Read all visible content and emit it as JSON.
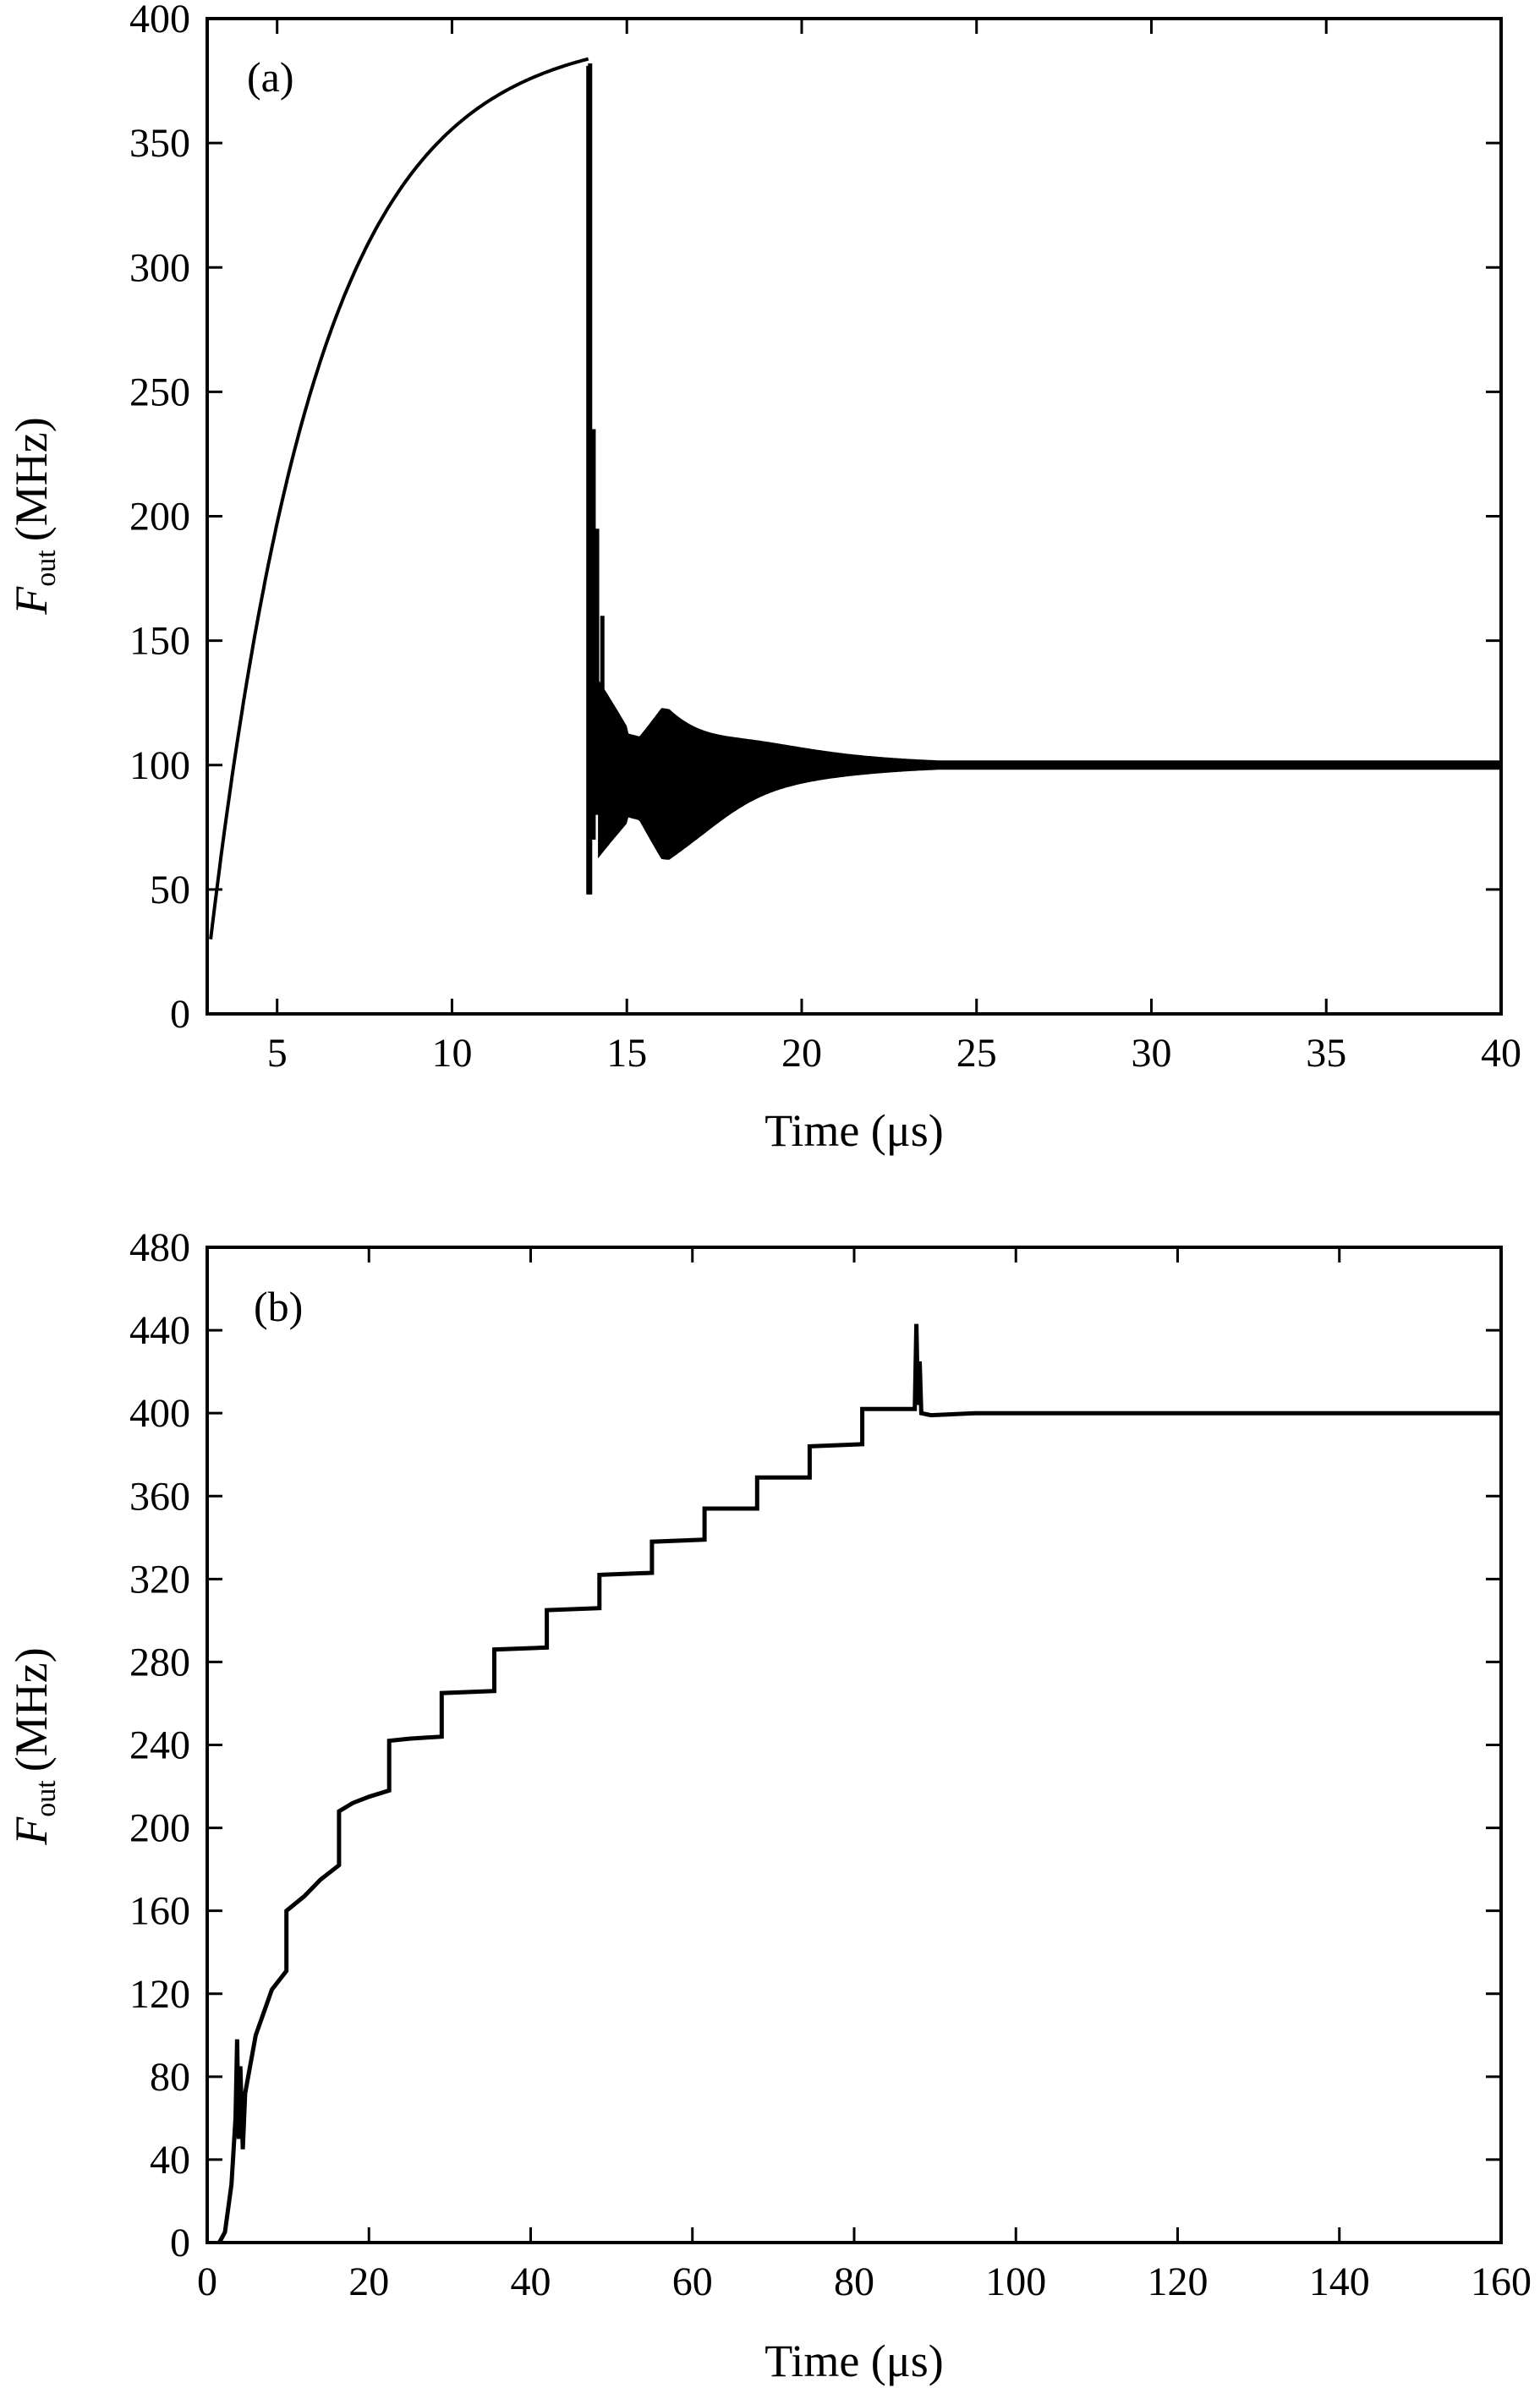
{
  "chart_data": [
    {
      "type": "line",
      "panel_label": "(a)",
      "xlabel": "Time (μs)",
      "ylabel_main": "F",
      "ylabel_sub": "out",
      "ylabel_unit": "(MHz)",
      "xlim": [
        3,
        40
      ],
      "ylim": [
        0,
        400
      ],
      "xticks": [
        5,
        10,
        15,
        20,
        25,
        30,
        35,
        40
      ],
      "yticks": [
        0,
        50,
        100,
        150,
        200,
        250,
        300,
        350,
        400
      ],
      "grid": false,
      "color": "#000000",
      "segments": {
        "rise": {
          "x_start": 3.1,
          "x_end": 13.9,
          "y_start": 30,
          "y_final": 395,
          "tau": 3.1
        },
        "drop": {
          "x": 13.9,
          "y_top": 381,
          "y_bottom": 48
        },
        "spikes": [
          [
            13.95,
            48,
            382
          ],
          [
            14.05,
            70,
            235
          ],
          [
            14.15,
            80,
            195
          ],
          [
            14.3,
            90,
            160
          ]
        ],
        "oscillation": {
          "x_start": 14.2,
          "x_end": 40,
          "center": 100,
          "amp_start": 35,
          "envelope_peak_x": 16.2,
          "envelope_peak_amp": 30,
          "decay_tau": 2.6,
          "final_amp": 1.5
        }
      }
    },
    {
      "type": "line",
      "panel_label": "(b)",
      "xlabel": "Time (μs)",
      "ylabel_main": "F",
      "ylabel_sub": "out",
      "ylabel_unit": "(MHz)",
      "xlim": [
        0,
        160
      ],
      "ylim": [
        0,
        480
      ],
      "xticks": [
        0,
        20,
        40,
        60,
        80,
        100,
        120,
        140,
        160
      ],
      "yticks": [
        0,
        40,
        80,
        120,
        160,
        200,
        240,
        280,
        320,
        360,
        400,
        440,
        480
      ],
      "grid": false,
      "color": "#000000",
      "points": [
        [
          1.5,
          0
        ],
        [
          2.2,
          5
        ],
        [
          3.0,
          28
        ],
        [
          3.5,
          60
        ],
        [
          3.7,
          98
        ],
        [
          3.9,
          50
        ],
        [
          4.1,
          85
        ],
        [
          4.4,
          45
        ],
        [
          4.7,
          72
        ],
        [
          6.0,
          100
        ],
        [
          8.0,
          122
        ],
        [
          9.8,
          131
        ],
        [
          9.8,
          160
        ],
        [
          12.0,
          167
        ],
        [
          14.0,
          175
        ],
        [
          16.3,
          182
        ],
        [
          16.3,
          208
        ],
        [
          18.0,
          212
        ],
        [
          20.0,
          215
        ],
        [
          22.5,
          218
        ],
        [
          22.5,
          242
        ],
        [
          25.0,
          243
        ],
        [
          29.0,
          244
        ],
        [
          29.0,
          265
        ],
        [
          35.5,
          266
        ],
        [
          35.5,
          286
        ],
        [
          42.0,
          287
        ],
        [
          42.0,
          305
        ],
        [
          48.5,
          306
        ],
        [
          48.5,
          322
        ],
        [
          55.0,
          323
        ],
        [
          55.0,
          338
        ],
        [
          61.5,
          339
        ],
        [
          61.5,
          354
        ],
        [
          68.0,
          354
        ],
        [
          68.0,
          369
        ],
        [
          74.5,
          369
        ],
        [
          74.5,
          384
        ],
        [
          81.0,
          385
        ],
        [
          81.0,
          402
        ],
        [
          87.5,
          402
        ],
        [
          87.7,
          443
        ],
        [
          87.9,
          404
        ],
        [
          88.1,
          425
        ],
        [
          88.3,
          400
        ],
        [
          89.5,
          399
        ],
        [
          95.0,
          400
        ],
        [
          160.0,
          400
        ]
      ]
    }
  ]
}
